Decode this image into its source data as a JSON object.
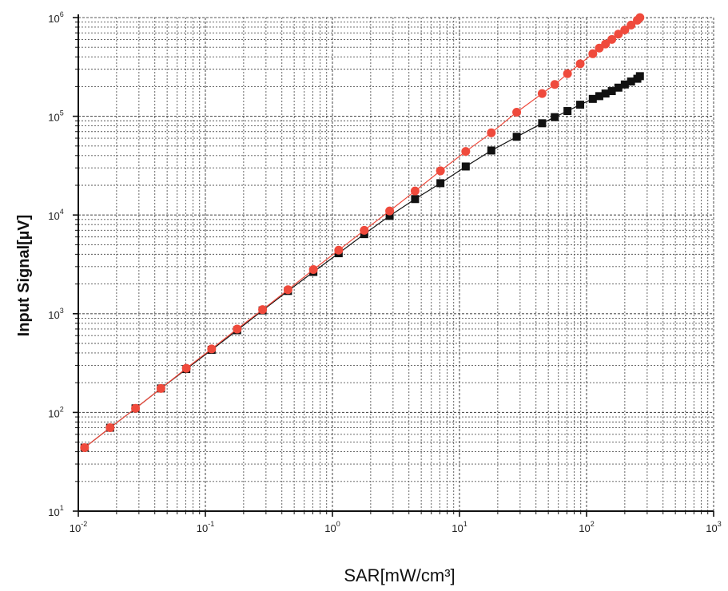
{
  "chart_data": {
    "type": "scatter",
    "title": "",
    "xlabel": "SAR[mW/cm³]",
    "ylabel": "Input Signal[µV]",
    "x_scale": "log",
    "y_scale": "log",
    "xlim": [
      0.01,
      1000
    ],
    "ylim": [
      10,
      1000000
    ],
    "grid": true,
    "legend": "none",
    "x_ticks": [
      {
        "base": "10",
        "exp": "-2"
      },
      {
        "base": "10",
        "exp": "-1"
      },
      {
        "base": "10",
        "exp": "0"
      },
      {
        "base": "10",
        "exp": "1"
      },
      {
        "base": "10",
        "exp": "2"
      },
      {
        "base": "10",
        "exp": "3"
      }
    ],
    "y_ticks": [
      {
        "base": "10",
        "exp": "1"
      },
      {
        "base": "10",
        "exp": "2"
      },
      {
        "base": "10",
        "exp": "3"
      },
      {
        "base": "10",
        "exp": "4"
      },
      {
        "base": "10",
        "exp": "5"
      },
      {
        "base": "10",
        "exp": "6"
      }
    ],
    "colors": {
      "red": "#ef4a3c",
      "black": "#111111",
      "grid": "#555555"
    },
    "series": [
      {
        "color": "#ef4a3c",
        "marker": "circle",
        "x": [
          0.0112,
          0.0178,
          0.0282,
          0.0447,
          0.0708,
          0.112,
          0.178,
          0.282,
          0.447,
          0.708,
          1.12,
          1.78,
          2.82,
          4.47,
          7.08,
          11.2,
          17.8,
          28.2,
          44.7,
          56.2,
          70.8,
          89.1,
          112,
          126,
          141,
          158,
          178,
          200,
          224,
          251,
          263
        ],
        "y": [
          44,
          70,
          110,
          175,
          280,
          440,
          700,
          1100,
          1750,
          2800,
          4400,
          7000,
          11000,
          17500,
          28000,
          44000,
          68000,
          110000,
          170000,
          210000,
          270000,
          340000,
          430000,
          490000,
          540000,
          600000,
          680000,
          750000,
          840000,
          940000,
          1000000
        ]
      },
      {
        "color": "#111111",
        "marker": "square",
        "x": [
          0.0112,
          0.0178,
          0.0282,
          0.0447,
          0.0708,
          0.112,
          0.178,
          0.282,
          0.447,
          0.708,
          1.12,
          1.78,
          2.82,
          4.47,
          7.08,
          11.2,
          17.8,
          28.2,
          44.7,
          56.2,
          70.8,
          89.1,
          112,
          126,
          141,
          158,
          178,
          200,
          224,
          251,
          263
        ],
        "y": [
          44,
          70,
          110,
          175,
          275,
          430,
          680,
          1080,
          1700,
          2650,
          4100,
          6400,
          9800,
          14500,
          21000,
          31000,
          45000,
          62000,
          85000,
          98000,
          113000,
          131000,
          150000,
          160000,
          170000,
          180000,
          195000,
          210000,
          225000,
          240000,
          255000
        ]
      }
    ]
  }
}
